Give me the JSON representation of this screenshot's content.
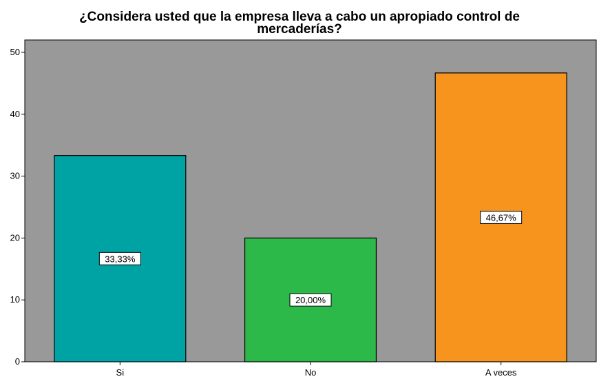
{
  "chart_data": {
    "type": "bar",
    "title_line1": "¿Considera usted que la empresa lleva a cabo un apropiado control de",
    "title_line2": "mercaderías?",
    "categories": [
      "Si",
      "No",
      "A veces"
    ],
    "values": [
      33.33,
      20.0,
      46.67
    ],
    "data_labels": [
      "33,33%",
      "20,00%",
      "46,67%"
    ],
    "colors": [
      "#00a3a3",
      "#2db84a",
      "#f7941d"
    ],
    "ylim": [
      0,
      52
    ],
    "yticks": [
      0,
      10,
      20,
      30,
      40,
      50
    ],
    "xlabel": "",
    "ylabel": "",
    "grid": false,
    "plot_background": "#999999"
  }
}
